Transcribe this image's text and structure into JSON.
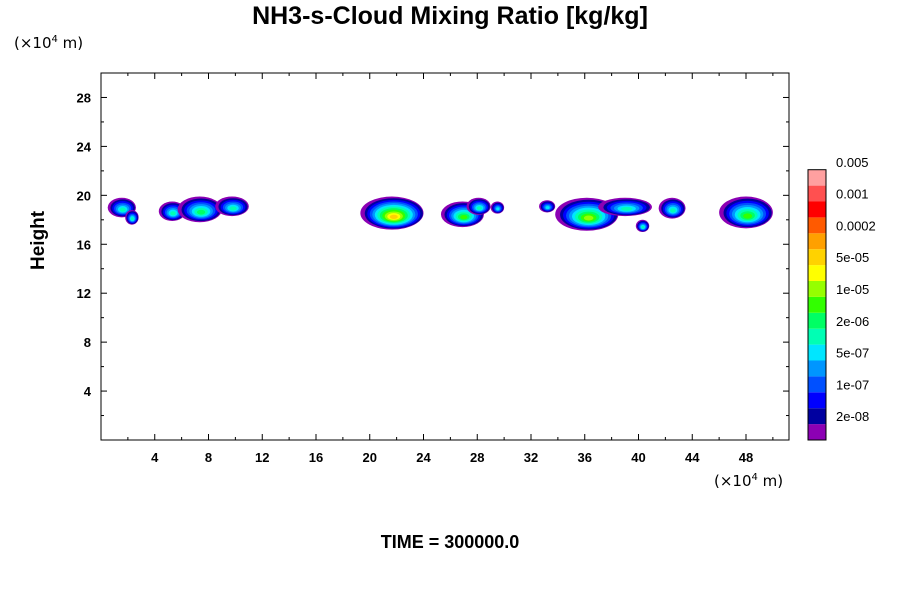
{
  "title": "NH3-s-Cloud Mixing Ratio [kg/kg]",
  "y_unit": {
    "prefix": "(×10",
    "exp": "4",
    "suffix": " m)"
  },
  "x_unit": {
    "prefix": "(×10",
    "exp": "4",
    "suffix": " m)"
  },
  "ylabel": "Height",
  "time_label": "TIME = 300000.0",
  "colorbar": {
    "colors": [
      "#8c00b4",
      "#0000a0",
      "#0000ff",
      "#0050ff",
      "#0096ff",
      "#00e6ff",
      "#00ffb4",
      "#00ff64",
      "#32ff00",
      "#96ff00",
      "#ffff00",
      "#ffd200",
      "#ffa000",
      "#ff5a00",
      "#ff0000",
      "#ff5050",
      "#ffa0a0"
    ],
    "labels": [
      "2e-08",
      "1e-07",
      "5e-07",
      "2e-06",
      "1e-05",
      "5e-05",
      "0.0002",
      "0.001",
      "0.005"
    ]
  },
  "chart_data": {
    "type": "heatmap",
    "title": "NH3-s-Cloud Mixing Ratio [kg/kg]",
    "xlabel": "",
    "ylabel": "Height",
    "x_unit": "×10^4 m",
    "y_unit": "×10^4 m",
    "xlim": [
      0,
      51.2
    ],
    "ylim": [
      0,
      30
    ],
    "xticks": [
      4,
      8,
      12,
      16,
      20,
      24,
      28,
      32,
      36,
      40,
      44,
      48
    ],
    "yticks": [
      4,
      8,
      12,
      16,
      20,
      24,
      28
    ],
    "colorbar_ticks": [
      "2e-08",
      "1e-07",
      "5e-07",
      "2e-06",
      "1e-05",
      "5e-05",
      "0.0002",
      "0.001",
      "0.005"
    ],
    "cloud_patches": [
      {
        "x": [
          0.5,
          2.6
        ],
        "y": [
          18.2,
          19.8
        ],
        "max_level": 6
      },
      {
        "x": [
          1.8,
          2.8
        ],
        "y": [
          17.6,
          18.8
        ],
        "max_level": 6
      },
      {
        "x": [
          4.3,
          6.3
        ],
        "y": [
          17.9,
          19.5
        ],
        "max_level": 6
      },
      {
        "x": [
          5.7,
          9.0
        ],
        "y": [
          17.8,
          19.9
        ],
        "max_level": 7
      },
      {
        "x": [
          8.5,
          11.0
        ],
        "y": [
          18.3,
          19.9
        ],
        "max_level": 6
      },
      {
        "x": [
          19.3,
          24.0
        ],
        "y": [
          17.2,
          19.9
        ],
        "max_level": 11
      },
      {
        "x": [
          25.3,
          28.5
        ],
        "y": [
          17.4,
          19.5
        ],
        "max_level": 8
      },
      {
        "x": [
          27.2,
          29.0
        ],
        "y": [
          18.4,
          19.8
        ],
        "max_level": 6
      },
      {
        "x": [
          29.0,
          30.0
        ],
        "y": [
          18.5,
          19.5
        ],
        "max_level": 5
      },
      {
        "x": [
          32.6,
          33.8
        ],
        "y": [
          18.6,
          19.6
        ],
        "max_level": 5
      },
      {
        "x": [
          33.8,
          38.5
        ],
        "y": [
          17.1,
          19.8
        ],
        "max_level": 9
      },
      {
        "x": [
          37.0,
          41.0
        ],
        "y": [
          18.3,
          19.8
        ],
        "max_level": 6
      },
      {
        "x": [
          39.8,
          40.8
        ],
        "y": [
          17.0,
          18.0
        ],
        "max_level": 6
      },
      {
        "x": [
          41.5,
          43.5
        ],
        "y": [
          18.1,
          19.8
        ],
        "max_level": 6
      },
      {
        "x": [
          46.0,
          50.0
        ],
        "y": [
          17.3,
          19.9
        ],
        "max_level": 8
      }
    ]
  }
}
